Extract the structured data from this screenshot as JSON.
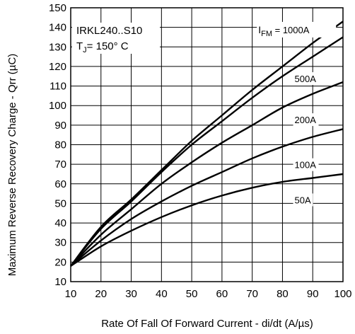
{
  "chart_data": {
    "type": "line",
    "title": "",
    "xlabel": "Rate Of Fall Of Forward Current - di/dt (A/µs)",
    "ylabel": "Maximum Reverse Recovery Charge - Qrr (µC)",
    "xlim": [
      10,
      100
    ],
    "ylim": [
      10,
      150
    ],
    "x_ticks": [
      10,
      20,
      30,
      40,
      50,
      60,
      70,
      80,
      90,
      100
    ],
    "y_ticks": [
      10,
      20,
      30,
      40,
      50,
      60,
      70,
      80,
      90,
      100,
      110,
      120,
      130,
      140,
      150
    ],
    "grid": true,
    "annotation": {
      "device": "IRKL240..S10",
      "temp_prefix": "T",
      "temp_sub": "J",
      "temp_value": "= 150° C"
    },
    "curve_header": {
      "prefix": "I",
      "sub": "FM",
      "suffix": " = "
    },
    "x": [
      10,
      20,
      30,
      40,
      50,
      60,
      70,
      80,
      90,
      100
    ],
    "series": [
      {
        "name": "1000A",
        "values": [
          18,
          38,
          52,
          67,
          82,
          95,
          108,
          120,
          132,
          143
        ]
      },
      {
        "name": "500A",
        "values": [
          18,
          37,
          51,
          66,
          80,
          92,
          104,
          115,
          125,
          135
        ]
      },
      {
        "name": "200A",
        "values": [
          18,
          34,
          47,
          60,
          71,
          81,
          90,
          99,
          106,
          112
        ]
      },
      {
        "name": "100A",
        "values": [
          18,
          31,
          42,
          51,
          59,
          66,
          73,
          79,
          84,
          88
        ]
      },
      {
        "name": "50A",
        "values": [
          18,
          28,
          36,
          43,
          49,
          54,
          58,
          61,
          63,
          65
        ]
      }
    ]
  }
}
